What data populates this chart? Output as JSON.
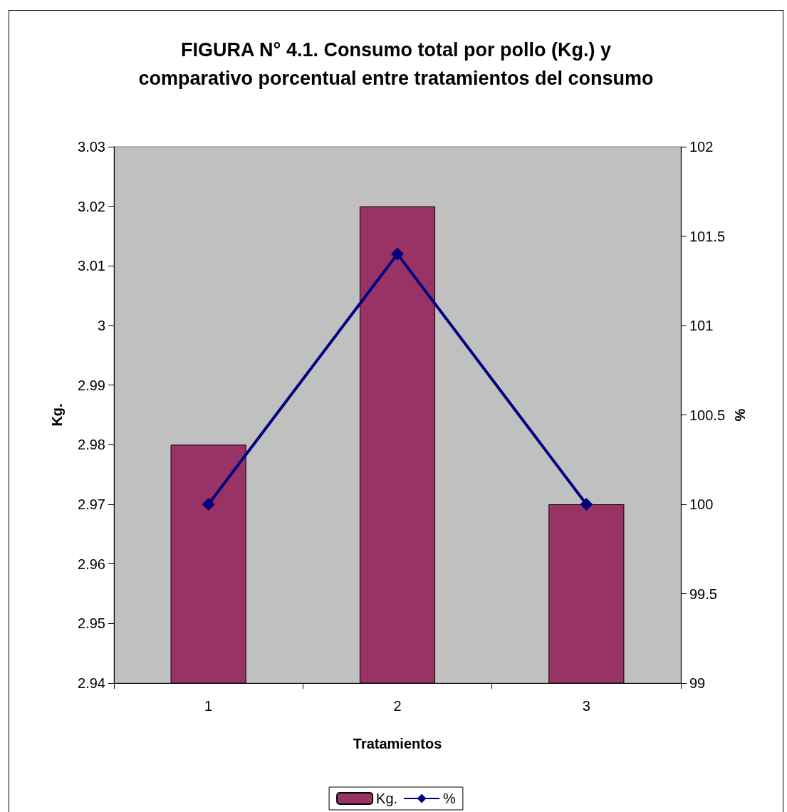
{
  "chart_data": {
    "type": "bar",
    "title": "FIGURA N° 4.1. Consumo total por pollo (Kg.) y\ncomparativo porcentual entre tratamientos del consumo",
    "xlabel": "Tratamientos",
    "ylabel": "Kg.",
    "y2label": "%",
    "categories": [
      "1",
      "2",
      "3"
    ],
    "series": [
      {
        "name": "Kg.",
        "color": "#993366",
        "values": [
          2.98,
          3.02,
          2.97
        ]
      },
      {
        "name": "%",
        "type": "line",
        "axis": "y2",
        "color": "#000080",
        "values": [
          100,
          101.4,
          100
        ]
      }
    ],
    "ylim": [
      2.94,
      3.03
    ],
    "yticks": [
      2.94,
      2.95,
      2.96,
      2.97,
      2.98,
      2.99,
      3,
      3.01,
      3.02,
      3.03
    ],
    "y2lim": [
      99,
      102
    ],
    "y2ticks": [
      99,
      99.5,
      100,
      100.5,
      101,
      101.5,
      102
    ],
    "marker": "diamond",
    "legend": "bottom",
    "grid": false
  }
}
